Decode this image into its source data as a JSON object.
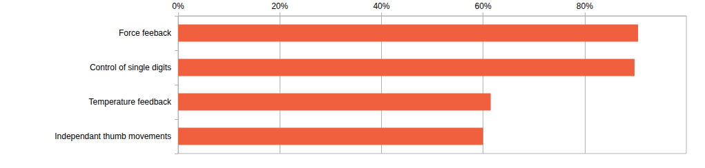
{
  "chart_data": {
    "type": "bar",
    "orientation": "horizontal",
    "categories": [
      "Force feeback",
      "Control of single digits",
      "Temperature feedback",
      "Independant thumb movements"
    ],
    "values": [
      90.5,
      89.8,
      61.5,
      60
    ],
    "color": "#f0603f",
    "xlim": [
      0,
      100
    ],
    "xticks": [
      {
        "value": 0,
        "label": "0%"
      },
      {
        "value": 20,
        "label": "20%"
      },
      {
        "value": 40,
        "label": "40%"
      },
      {
        "value": 60,
        "label": "60%"
      },
      {
        "value": 80,
        "label": "80%"
      }
    ],
    "grid": true
  }
}
